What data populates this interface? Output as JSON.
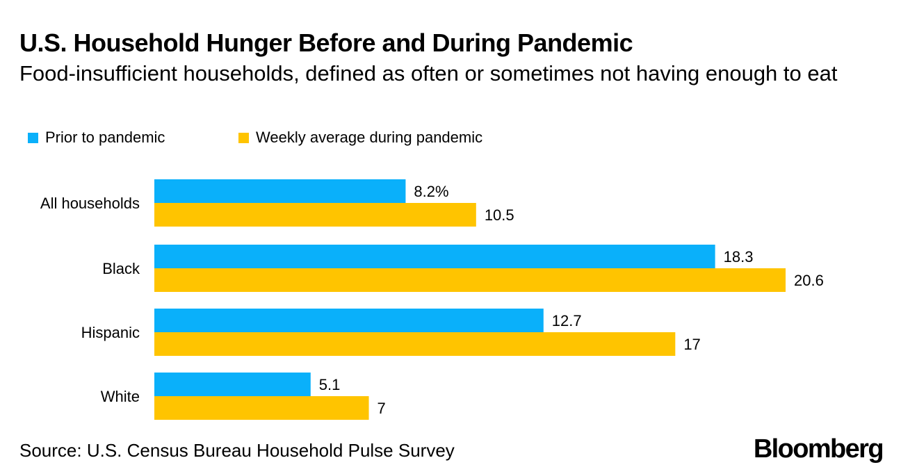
{
  "header": {
    "title": "U.S. Household Hunger Before and During Pandemic",
    "subtitle": "Food-insufficient households, defined as often or sometimes not having enough to eat"
  },
  "legend": {
    "items": [
      {
        "label": "Prior to pandemic",
        "color": "#0ab0fa"
      },
      {
        "label": "Weekly average during pandemic",
        "color": "#ffc400"
      }
    ]
  },
  "footer": {
    "source": "Source: U.S. Census Bureau Household Pulse Survey",
    "logo": "Bloomberg"
  },
  "chart_data": {
    "type": "bar",
    "orientation": "horizontal",
    "title": "U.S. Household Hunger Before and During Pandemic",
    "subtitle": "Food-insufficient households, defined as often or sometimes not having enough to eat",
    "xlabel": "",
    "ylabel": "",
    "xlim": [
      0,
      20.6
    ],
    "grid": false,
    "legend_position": "top-left",
    "categories": [
      "All households",
      "Black",
      "Hispanic",
      "White"
    ],
    "series": [
      {
        "name": "Prior to pandemic",
        "color": "#0ab0fa",
        "values": [
          8.2,
          18.3,
          12.7,
          5.1
        ],
        "labels": [
          "8.2%",
          "18.3",
          "12.7",
          "5.1"
        ]
      },
      {
        "name": "Weekly average during pandemic",
        "color": "#ffc400",
        "values": [
          10.5,
          20.6,
          17,
          7
        ],
        "labels": [
          "10.5",
          "20.6",
          "17",
          "7"
        ]
      }
    ]
  }
}
